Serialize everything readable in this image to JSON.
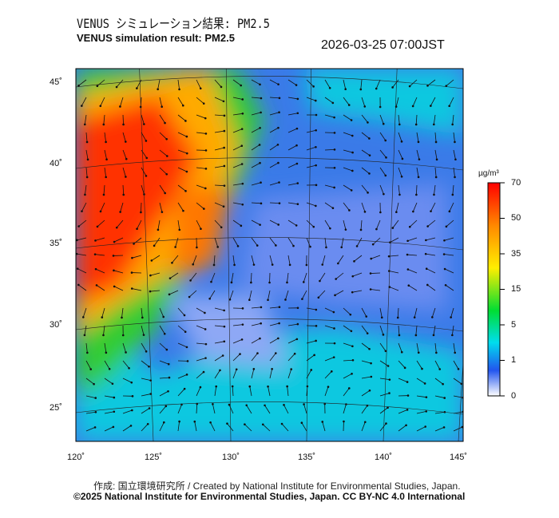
{
  "title_ja": "VENUS シミュレーション結果: PM2.5",
  "title_en": "VENUS simulation result: PM2.5",
  "timestamp": "2026-03-25 07:00JST",
  "map": {
    "lat_labels": [
      "45˚",
      "40˚",
      "35˚",
      "30˚",
      "25˚"
    ],
    "lon_labels": [
      "120˚",
      "125˚",
      "130˚",
      "135˚",
      "140˚",
      "145˚"
    ]
  },
  "colorbar": {
    "unit": "µg/m³",
    "ticks": [
      "70",
      "50",
      "35",
      "15",
      "5",
      "1",
      "0"
    ],
    "colors": [
      "#ff0000",
      "#ff9900",
      "#ffee00",
      "#00dd00",
      "#00ddee",
      "#2255ee",
      "#ffffff"
    ]
  },
  "footer": {
    "credit": "作成: 国立環境研究所 / Created by National Institute for Environmental Studies, Japan.",
    "license": "©2025 National Institute for Environmental Studies, Japan. CC BY-NC 4.0 International"
  }
}
